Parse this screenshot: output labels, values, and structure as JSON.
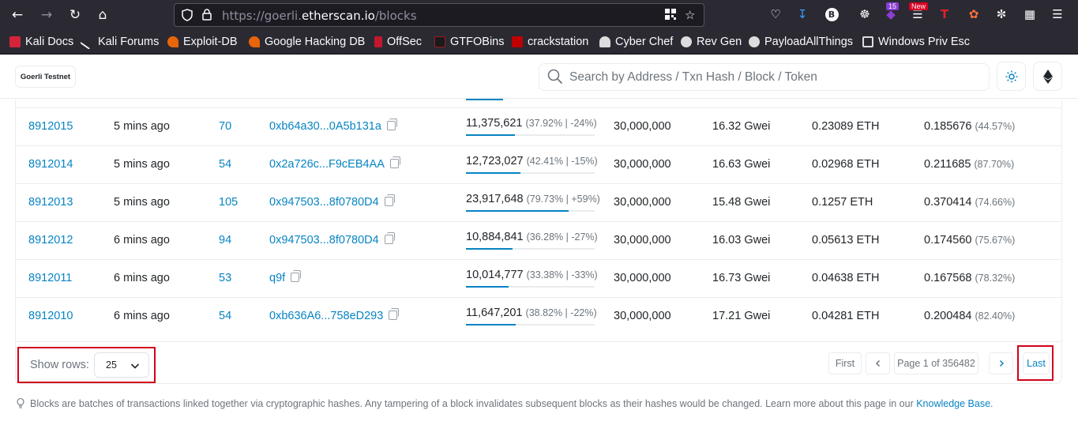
{
  "browser": {
    "url_prefix": "https://goerli.",
    "url_host": "etherscan.io",
    "url_path": "/blocks",
    "badge_count": "15",
    "badge_new": "New"
  },
  "bookmarks": [
    {
      "label": "Kali Docs",
      "color": "#d4243a"
    },
    {
      "label": "Kali Forums",
      "color": "#ffffff"
    },
    {
      "label": "Exploit-DB",
      "color": "#e8650a"
    },
    {
      "label": "Google Hacking DB",
      "color": "#e8650a"
    },
    {
      "label": "OffSec",
      "color": "#c4172e"
    },
    {
      "label": "GTFOBins",
      "color": "#9c1b1b"
    },
    {
      "label": "crackstation",
      "color": "#c00000"
    },
    {
      "label": "Cyber Chef",
      "color": "#dddddd"
    },
    {
      "label": "Rev Gen",
      "color": "#dddddd"
    },
    {
      "label": "PayloadAllThings",
      "color": "#dddddd"
    },
    {
      "label": "Windows Priv Esc",
      "color": "#dddddd"
    }
  ],
  "header": {
    "network": "Goerli Testnet",
    "search_placeholder": "Search by Address / Txn Hash / Block / Token"
  },
  "rows": [
    {
      "block": "8912015",
      "age": "5 mins ago",
      "txn": "70",
      "miner": "0xb64a30...0A5b131a",
      "gas_used": "11,375,621",
      "gas_pct": "(37.92% | -24%)",
      "fill": 0.3792,
      "gas_limit": "30,000,000",
      "base_fee": "16.32 Gwei",
      "reward": "0.23089 ETH",
      "burnt": "0.185676",
      "burnt_pct": "(44.57%)"
    },
    {
      "block": "8912014",
      "age": "5 mins ago",
      "txn": "54",
      "miner": "0x2a726c...F9cEB4AA",
      "gas_used": "12,723,027",
      "gas_pct": "(42.41% | -15%)",
      "fill": 0.4241,
      "gas_limit": "30,000,000",
      "base_fee": "16.63 Gwei",
      "reward": "0.02968 ETH",
      "burnt": "0.211685",
      "burnt_pct": "(87.70%)"
    },
    {
      "block": "8912013",
      "age": "5 mins ago",
      "txn": "105",
      "miner": "0x947503...8f0780D4",
      "gas_used": "23,917,648",
      "gas_pct": "(79.73% | +59%)",
      "fill": 0.7973,
      "gas_limit": "30,000,000",
      "base_fee": "15.48 Gwei",
      "reward": "0.1257 ETH",
      "burnt": "0.370414",
      "burnt_pct": "(74.66%)"
    },
    {
      "block": "8912012",
      "age": "6 mins ago",
      "txn": "94",
      "miner": "0x947503...8f0780D4",
      "gas_used": "10,884,841",
      "gas_pct": "(36.28% | -27%)",
      "fill": 0.3628,
      "gas_limit": "30,000,000",
      "base_fee": "16.03 Gwei",
      "reward": "0.05613 ETH",
      "burnt": "0.174560",
      "burnt_pct": "(75.67%)"
    },
    {
      "block": "8912011",
      "age": "6 mins ago",
      "txn": "53",
      "miner": "q9f",
      "gas_used": "10,014,777",
      "gas_pct": "(33.38% | -33%)",
      "fill": 0.3338,
      "gas_limit": "30,000,000",
      "base_fee": "16.73 Gwei",
      "reward": "0.04638 ETH",
      "burnt": "0.167568",
      "burnt_pct": "(78.32%)"
    },
    {
      "block": "8912010",
      "age": "6 mins ago",
      "txn": "54",
      "miner": "0xb636A6...758eD293",
      "gas_used": "11,647,201",
      "gas_pct": "(38.82% | -22%)",
      "fill": 0.3882,
      "gas_limit": "30,000,000",
      "base_fee": "17.21 Gwei",
      "reward": "0.04281 ETH",
      "burnt": "0.200484",
      "burnt_pct": "(82.40%)"
    }
  ],
  "pagination": {
    "show_rows_label": "Show rows:",
    "rows_value": "25",
    "first": "First",
    "page_info": "Page 1 of 356482",
    "last": "Last"
  },
  "footer_note": {
    "text": "Blocks are batches of transactions linked together via cryptographic hashes. Any tampering of a block invalidates subsequent blocks as their hashes would be changed. Learn more about this page in our ",
    "link": "Knowledge Base",
    "end": "."
  }
}
